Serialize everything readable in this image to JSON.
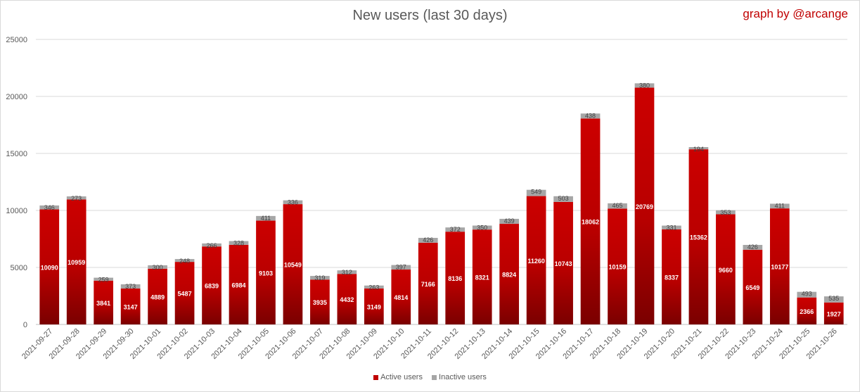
{
  "chart_data": {
    "type": "bar",
    "stacked": true,
    "title": "New users (last 30 days)",
    "credit": "graph by @arcange",
    "categories": [
      "2021-09-27",
      "2021-09-28",
      "2021-09-29",
      "2021-09-30",
      "2021-10-01",
      "2021-10-02",
      "2021-10-03",
      "2021-10-04",
      "2021-10-05",
      "2021-10-06",
      "2021-10-07",
      "2021-10-08",
      "2021-10-09",
      "2021-10-10",
      "2021-10-11",
      "2021-10-12",
      "2021-10-13",
      "2021-10-14",
      "2021-10-15",
      "2021-10-16",
      "2021-10-17",
      "2021-10-18",
      "2021-10-19",
      "2021-10-20",
      "2021-10-21",
      "2021-10-22",
      "2021-10-23",
      "2021-10-24",
      "2021-10-25",
      "2021-10-26"
    ],
    "series": [
      {
        "name": "Active users",
        "color": "#c00000",
        "values": [
          10090,
          10959,
          3841,
          3147,
          4889,
          5487,
          6839,
          6984,
          9103,
          10549,
          3935,
          4432,
          3149,
          4814,
          7166,
          8136,
          8321,
          8824,
          11260,
          10743,
          18062,
          10159,
          20769,
          8337,
          15362,
          9660,
          6549,
          10177,
          2366,
          1927
        ]
      },
      {
        "name": "Inactive users",
        "color": "#a6a6a6",
        "values": [
          346,
          273,
          259,
          373,
          300,
          248,
          266,
          328,
          411,
          336,
          319,
          312,
          263,
          397,
          426,
          372,
          350,
          439,
          549,
          503,
          438,
          465,
          380,
          331,
          194,
          353,
          426,
          411,
          493,
          535
        ]
      }
    ],
    "ylim": [
      0,
      25000
    ],
    "yticks": [
      0,
      5000,
      10000,
      15000,
      20000,
      25000
    ],
    "grid": true,
    "legend_position": "bottom"
  }
}
